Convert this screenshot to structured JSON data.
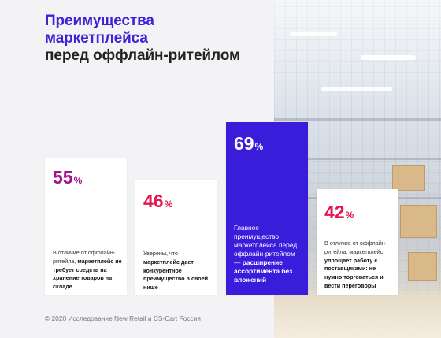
{
  "title": {
    "line1": "Преимущества",
    "line2": "маркетплейса",
    "line3": "перед оффлайн-ритейлом"
  },
  "colors": {
    "accent": "#3d22d8",
    "magenta": "#a5138f",
    "red": "#e5174f",
    "highlight_bg": "#3a1ddb"
  },
  "cards": [
    {
      "value": "55",
      "unit": "%",
      "text_pre": "В отличие от оффлайн-ритейла, ",
      "text_bold": "маркетплейс не требует средств на хранение товаров на складе",
      "text_post": ""
    },
    {
      "value": "46",
      "unit": "%",
      "text_pre": "Уверены, что ",
      "text_bold": "маркетплейс дает конкурентное преимущество в своей нише",
      "text_post": ""
    },
    {
      "value": "69",
      "unit": "%",
      "text_pre": "Главное преимущество маркетплейса перед оффлайн-ритейлом — ",
      "text_bold": "расширение ассортимента без вложений",
      "text_post": ""
    },
    {
      "value": "42",
      "unit": "%",
      "text_pre": "В отличие от оффлайн-ритейла, маркетплейс ",
      "text_bold": "упрощает работу с поставщиками: не нужно торговаться и вести переговоры",
      "text_post": ""
    }
  ],
  "footer": "© 2020 Исследование New Retail и CS-Cart Россия"
}
